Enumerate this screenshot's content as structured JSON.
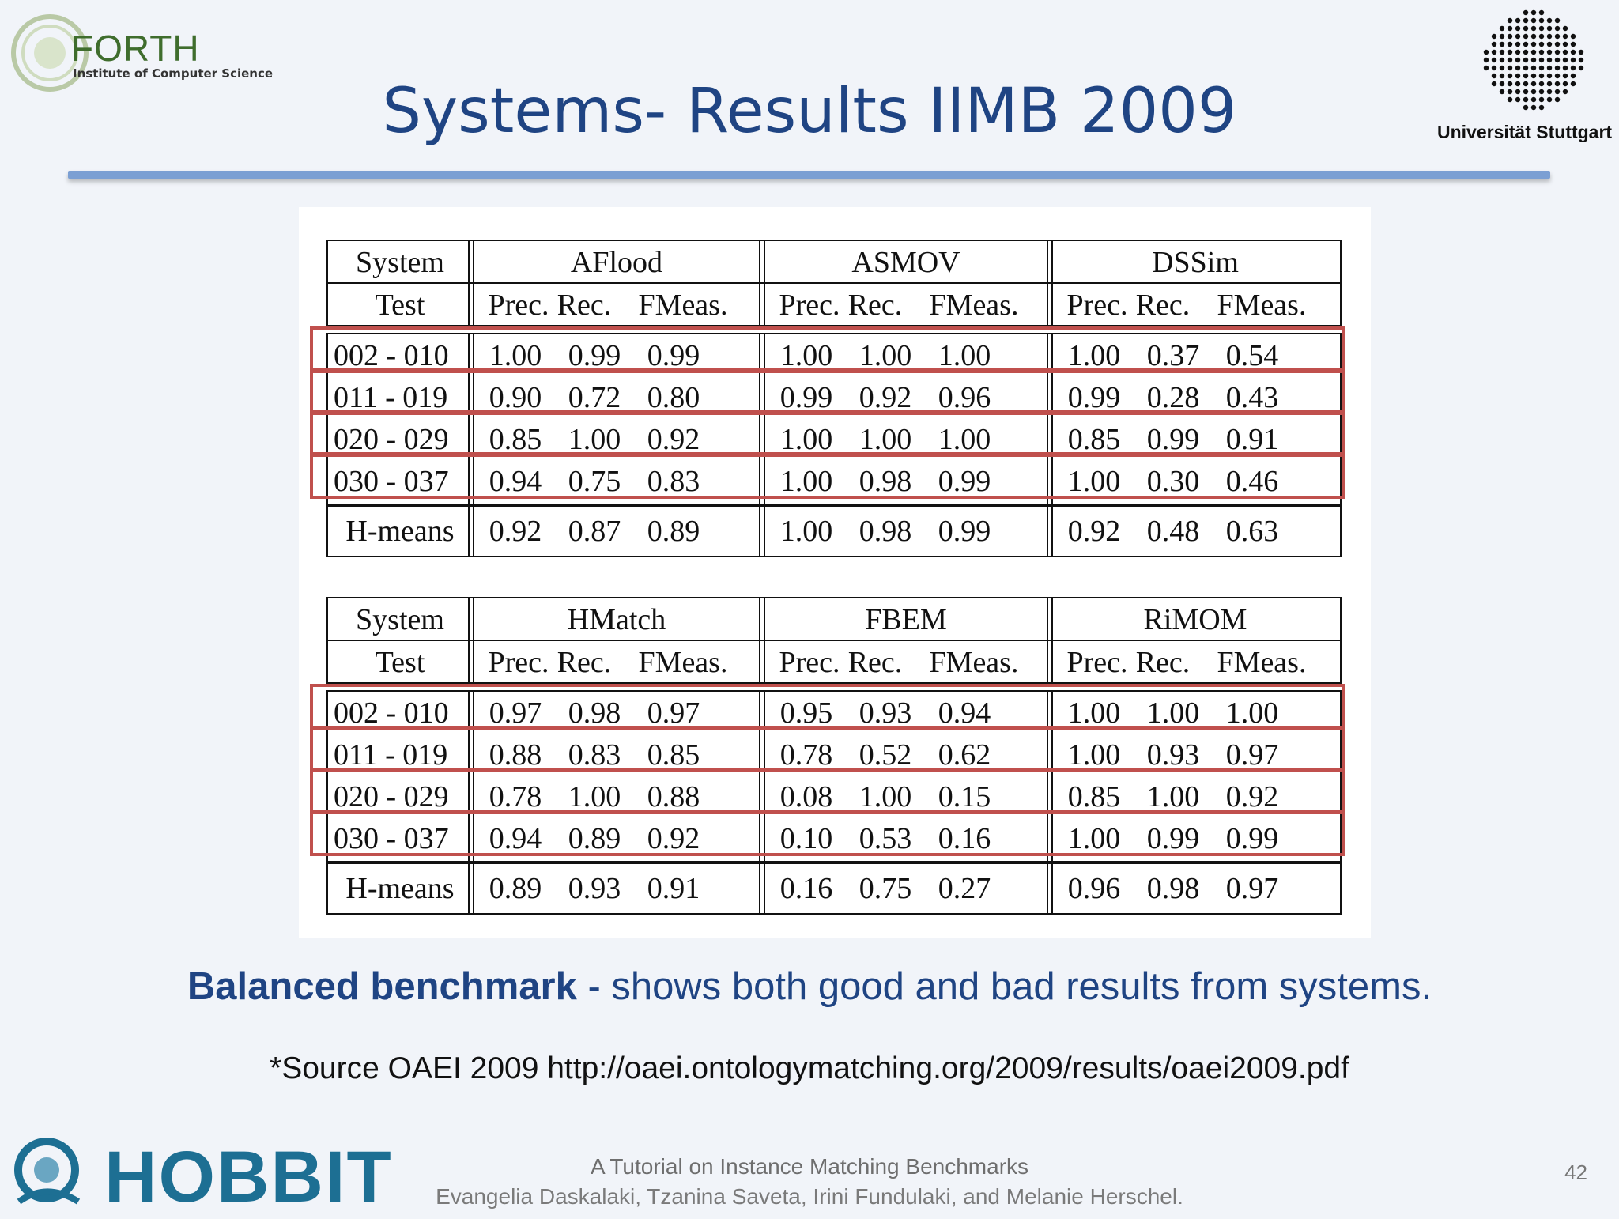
{
  "header": {
    "title": "Systems- Results IIMB 2009",
    "forth_logo": {
      "name": "FORTH",
      "subtitle": "Institute of Computer Science"
    },
    "stuttgart_logo": {
      "name": "Universität Stuttgart"
    }
  },
  "tables": [
    {
      "system_header": "System",
      "test_header": "Test",
      "systems": [
        "AFlood",
        "ASMOV",
        "DSSim"
      ],
      "metrics": [
        "Prec.",
        "Rec.",
        "FMeas."
      ],
      "rows": [
        {
          "test": "002 - 010",
          "values": [
            [
              "1.00",
              "0.99",
              "0.99"
            ],
            [
              "1.00",
              "1.00",
              "1.00"
            ],
            [
              "1.00",
              "0.37",
              "0.54"
            ]
          ]
        },
        {
          "test": "011 - 019",
          "values": [
            [
              "0.90",
              "0.72",
              "0.80"
            ],
            [
              "0.99",
              "0.92",
              "0.96"
            ],
            [
              "0.99",
              "0.28",
              "0.43"
            ]
          ]
        },
        {
          "test": "020 - 029",
          "values": [
            [
              "0.85",
              "1.00",
              "0.92"
            ],
            [
              "1.00",
              "1.00",
              "1.00"
            ],
            [
              "0.85",
              "0.99",
              "0.91"
            ]
          ]
        },
        {
          "test": "030 - 037",
          "values": [
            [
              "0.94",
              "0.75",
              "0.83"
            ],
            [
              "1.00",
              "0.98",
              "0.99"
            ],
            [
              "1.00",
              "0.30",
              "0.46"
            ]
          ]
        }
      ],
      "hmeans": {
        "test": "H-means",
        "values": [
          [
            "0.92",
            "0.87",
            "0.89"
          ],
          [
            "1.00",
            "0.98",
            "0.99"
          ],
          [
            "0.92",
            "0.48",
            "0.63"
          ]
        ]
      }
    },
    {
      "system_header": "System",
      "test_header": "Test",
      "systems": [
        "HMatch",
        "FBEM",
        "RiMOM"
      ],
      "metrics": [
        "Prec.",
        "Rec.",
        "FMeas."
      ],
      "rows": [
        {
          "test": "002 - 010",
          "values": [
            [
              "0.97",
              "0.98",
              "0.97"
            ],
            [
              "0.95",
              "0.93",
              "0.94"
            ],
            [
              "1.00",
              "1.00",
              "1.00"
            ]
          ]
        },
        {
          "test": "011 - 019",
          "values": [
            [
              "0.88",
              "0.83",
              "0.85"
            ],
            [
              "0.78",
              "0.52",
              "0.62"
            ],
            [
              "1.00",
              "0.93",
              "0.97"
            ]
          ]
        },
        {
          "test": "020 - 029",
          "values": [
            [
              "0.78",
              "1.00",
              "0.88"
            ],
            [
              "0.08",
              "1.00",
              "0.15"
            ],
            [
              "0.85",
              "1.00",
              "0.92"
            ]
          ]
        },
        {
          "test": "030 - 037",
          "values": [
            [
              "0.94",
              "0.89",
              "0.92"
            ],
            [
              "0.10",
              "0.53",
              "0.16"
            ],
            [
              "1.00",
              "0.99",
              "0.99"
            ]
          ]
        }
      ],
      "hmeans": {
        "test": "H-means",
        "values": [
          [
            "0.89",
            "0.93",
            "0.91"
          ],
          [
            "0.16",
            "0.75",
            "0.27"
          ],
          [
            "0.96",
            "0.98",
            "0.97"
          ]
        ]
      }
    }
  ],
  "highlight_color": "#c0504d",
  "tagline": {
    "bold": "Balanced benchmark",
    "rest": " - shows both good and bad results from systems."
  },
  "source": "*Source OAEI 2009 http://oaei.ontologymatching.org/2009/results/oaei2009.pdf",
  "footer": {
    "logo_text": "HOBBIT",
    "title": "A Tutorial on Instance Matching Benchmarks",
    "authors": "Evangelia Daskalaki, Tzanina Saveta, Irini Fundulaki, and Melanie Herschel.",
    "page": "42"
  }
}
